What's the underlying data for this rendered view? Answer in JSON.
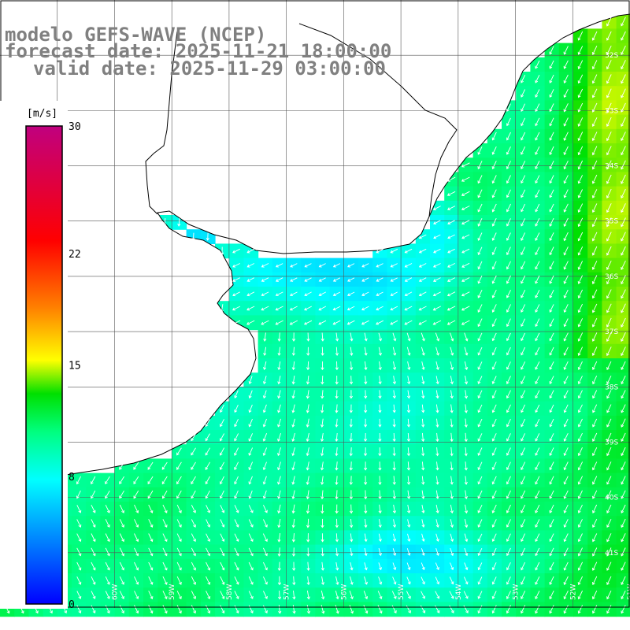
{
  "title": {
    "line1": "modelo GEFS-WAVE (NCEP)",
    "line2": "forecast date: 2025-11-21 18:00:00",
    "line3": "valid date: 2025-11-29 03:00:00"
  },
  "colorbar": {
    "unit": "[m/s]",
    "labels": [
      "30",
      "22",
      "15",
      "8",
      "0"
    ],
    "label_values": [
      30,
      22,
      15,
      8,
      0
    ],
    "range": [
      0,
      30
    ],
    "colors": [
      "#0000ff",
      "#0080ff",
      "#00ffff",
      "#00ff80",
      "#00e000",
      "#80ff00",
      "#ffff00",
      "#ff8000",
      "#ff0000",
      "#c0007f"
    ]
  },
  "map": {
    "lon_range": [
      -62,
      -51
    ],
    "lat_range": [
      -42,
      -31
    ],
    "lat_labels": [
      "32S",
      "33S",
      "34S",
      "35S",
      "36S",
      "37S",
      "38S",
      "39S",
      "40S",
      "41S"
    ],
    "lon_labels": [
      "61W",
      "60W",
      "59W",
      "58W",
      "57W",
      "56W",
      "55W",
      "54W",
      "53W",
      "52W",
      "51W"
    ],
    "field": "wind speed"
  }
}
